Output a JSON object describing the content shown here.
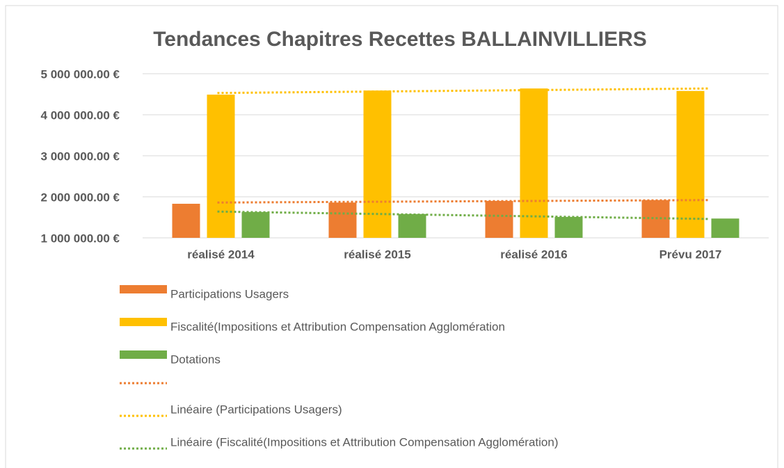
{
  "chart_data": {
    "type": "bar",
    "title": "Tendances Chapitres Recettes BALLAINVILLIERS",
    "categories": [
      "réalisé 2014",
      "réalisé 2015",
      "réalisé 2016",
      "Prévu 2017"
    ],
    "series": [
      {
        "name": "Participations Usagers",
        "color": "#ed7d31",
        "values": [
          1830000,
          1860000,
          1900000,
          1920000
        ]
      },
      {
        "name": "Fiscalité(Impositions et Attribution Compensation Agglomération",
        "color": "#ffc000",
        "values": [
          4490000,
          4590000,
          4640000,
          4580000
        ]
      },
      {
        "name": "Dotations",
        "color": "#70ad47",
        "values": [
          1630000,
          1580000,
          1510000,
          1470000
        ]
      }
    ],
    "trendlines": [
      {
        "color": "#ed7d31",
        "values": [
          1860000,
          1920000
        ]
      },
      {
        "name": "Linéaire (Participations Usagers)",
        "color": "#ffc000",
        "values": [
          4530000,
          4640000
        ]
      },
      {
        "name": "Linéaire (Fiscalité(Impositions et Attribution Compensation Agglomération)",
        "color": "#70ad47",
        "values": [
          1640000,
          1460000
        ]
      }
    ],
    "ylim": [
      1000000,
      5000000
    ],
    "yticks": [
      {
        "value": 1000000,
        "label": "1 000 000.00 €"
      },
      {
        "value": 2000000,
        "label": "2 000 000.00 €"
      },
      {
        "value": 3000000,
        "label": "3 000 000.00 €"
      },
      {
        "value": 4000000,
        "label": "4 000 000.00 €"
      },
      {
        "value": 5000000,
        "label": "5 000 000.00 €"
      }
    ],
    "grid": true
  }
}
